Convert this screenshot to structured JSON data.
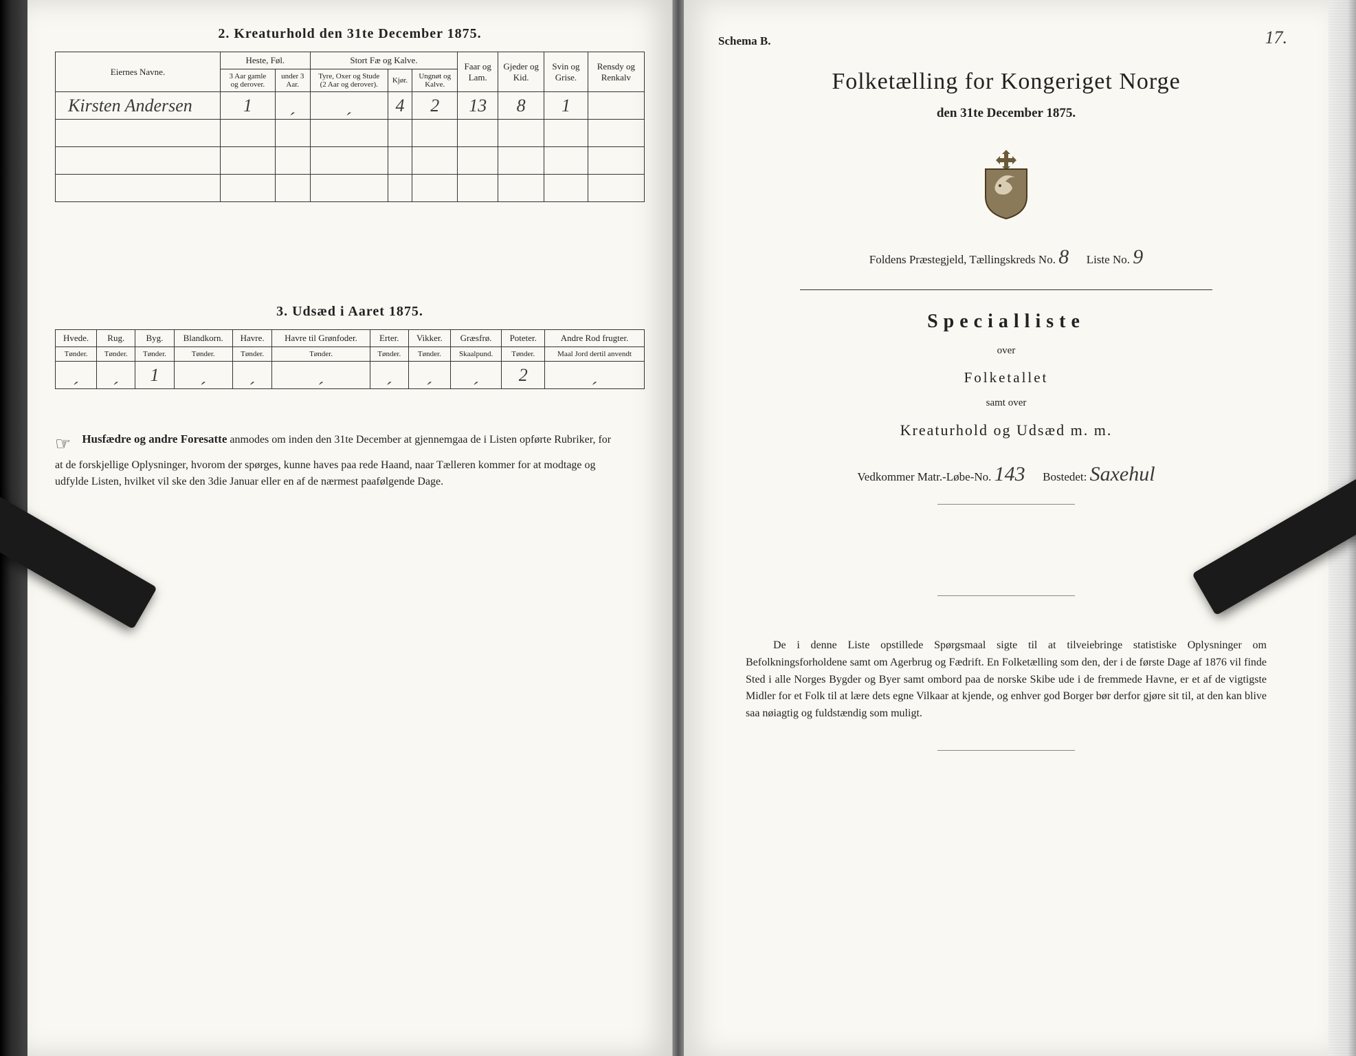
{
  "left": {
    "section2_title": "2.  Kreaturhold den 31te December 1875.",
    "section3_title": "3.  Udsæd i Aaret 1875.",
    "t1": {
      "col_name": "Eiernes Navne.",
      "grp_heste": "Heste, Føl.",
      "grp_stort": "Stort Fæ og Kalve.",
      "sub_3aar": "3 Aar gamle og derover.",
      "sub_under3": "under 3 Aar.",
      "sub_tyre": "Tyre, Oxer og Stude (2 Aar og derover).",
      "sub_kjor": "Kjør.",
      "sub_ungnot": "Ungnøt og Kalve.",
      "col_faar": "Faar og Lam.",
      "col_gjeder": "Gjeder og Kid.",
      "col_svin": "Svin og Grise.",
      "col_rensdyr": "Rensdy og Renkalv",
      "row_name": "Kirsten Andersen",
      "v1": "1",
      "v2": "ˏ",
      "v3": "ˏ",
      "v4": "4",
      "v5": "2",
      "v6": "13",
      "v7": "8",
      "v8": "1",
      "v9": ""
    },
    "t2": {
      "cols": [
        "Hvede.",
        "Rug.",
        "Byg.",
        "Blandkorn.",
        "Havre.",
        "Havre til Grønfoder.",
        "Erter.",
        "Vikker.",
        "Græsfrø.",
        "Poteter.",
        "Andre Rod frugter."
      ],
      "subs": [
        "Tønder.",
        "Tønder.",
        "Tønder.",
        "Tønder.",
        "Tønder.",
        "Tønder.",
        "Tønder.",
        "Tønder.",
        "Skaalpund.",
        "Tønder.",
        "Maal Jord dertil anvendt"
      ],
      "vals": [
        "ˏ",
        "ˏ",
        "1",
        "ˏ",
        "ˏ",
        "ˏ",
        "ˏ",
        "ˏ",
        "ˏ",
        "2",
        "ˏ"
      ]
    },
    "foot_lead": "Husfædre og andre Foresatte",
    "foot_body": " anmodes om inden den 31te December at gjennemgaa de i Listen opførte Rubriker, for at de forskjellige Oplysninger, hvorom der spørges, kunne haves paa rede Haand, naar Tælleren kommer for at modtage og udfylde Listen, hvilket vil ske den 3die Januar eller en af de nærmest paafølgende Dage."
  },
  "right": {
    "page_number": "17.",
    "schema": "Schema B.",
    "title": "Folketælling for Kongeriget Norge",
    "date": "den 31te December 1875.",
    "district_label": "Foldens Præstegjeld,  Tællingskreds No.",
    "district_no": "8",
    "liste_label": "Liste No.",
    "liste_no": "9",
    "special": "Specialliste",
    "over": "over",
    "folketallet": "Folketallet",
    "samt": "samt over",
    "kreatur": "Kreaturhold og Udsæd m. m.",
    "matr_label": "Vedkommer Matr.-Løbe-No.",
    "matr_no": "143",
    "bostedet_label": "Bostedet:",
    "bostedet": "Saxehul",
    "para": "De i denne Liste opstillede Spørgsmaal sigte til at tilveiebringe statistiske Oplysninger om Befolkningsforholdene samt om Agerbrug og Fædrift.  En Folketælling som den, der i de første Dage af 1876 vil finde Sted i alle Norges Bygder og Byer samt ombord paa de norske Skibe ude i de fremmede Havne, er et af de vigtigste Midler for et Folk til at lære dets egne Vilkaar at kjende, og enhver god Borger bør derfor gjøre sit til, at den kan blive saa nøiagtig og fuldstændig som muligt."
  },
  "colors": {
    "ink": "#222222",
    "paper": "#f9f8f2",
    "clip": "#1a1a1a"
  }
}
